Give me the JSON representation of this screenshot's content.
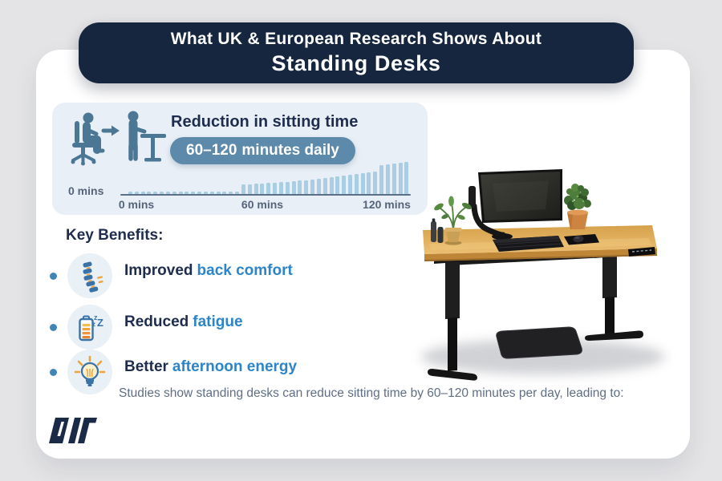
{
  "colors": {
    "background": "#e4e4e6",
    "card": "#ffffff",
    "navy": "#16263f",
    "panel": "#e9eff6",
    "badge": "#5d89aa",
    "bar": "#a9cde2",
    "pictogram": "#4b7795",
    "heading_text": "#1e2c4e",
    "highlight_text": "#2b85c8",
    "muted_text": "#5f6e84",
    "desk_wood": "#e0aa58"
  },
  "header": {
    "line1": "What UK & European Research Shows About",
    "line2": "Standing Desks"
  },
  "chart_panel": {
    "title": "Reduction in sitting time",
    "badge_strong": "60–120",
    "badge_rest": "minutes daily",
    "axis_left_label": "0 mins",
    "ticks": [
      "0 mins",
      "60 mins",
      "120 mins"
    ]
  },
  "chart_data": {
    "type": "bar",
    "title": "Reduction in sitting time",
    "annotation": "60–120 minutes daily",
    "x_axis": {
      "ticks": [
        "0 mins",
        "60 mins",
        "120 mins"
      ],
      "baseline_label": "0 mins"
    },
    "unit": "relative bar height (stylized progression of daily sitting-time reduction, 0 to 120+ mins)",
    "values": [
      3,
      3,
      3,
      3,
      3,
      3,
      3,
      3,
      3,
      3,
      3,
      3,
      3,
      3,
      3,
      3,
      3,
      3,
      12,
      12,
      13,
      13,
      14,
      14,
      15,
      15,
      16,
      17,
      17,
      18,
      19,
      20,
      21,
      22,
      23,
      24,
      25,
      26,
      27,
      28,
      36,
      37,
      38,
      39,
      40
    ]
  },
  "benefits": {
    "heading": "Key Benefits:",
    "items": [
      {
        "prefix": "Improved",
        "highlight": "back comfort",
        "icon": "spine-icon"
      },
      {
        "prefix": "Reduced",
        "highlight": "fatigue",
        "icon": "battery-sleep-icon"
      },
      {
        "prefix": "Better",
        "highlight": "afternoon energy",
        "icon": "lightbulb-icon"
      }
    ]
  },
  "footnote": "Studies show standing desks can reduce sitting time by 60–120 minutes per day, leading to:",
  "logo_text": "DW"
}
